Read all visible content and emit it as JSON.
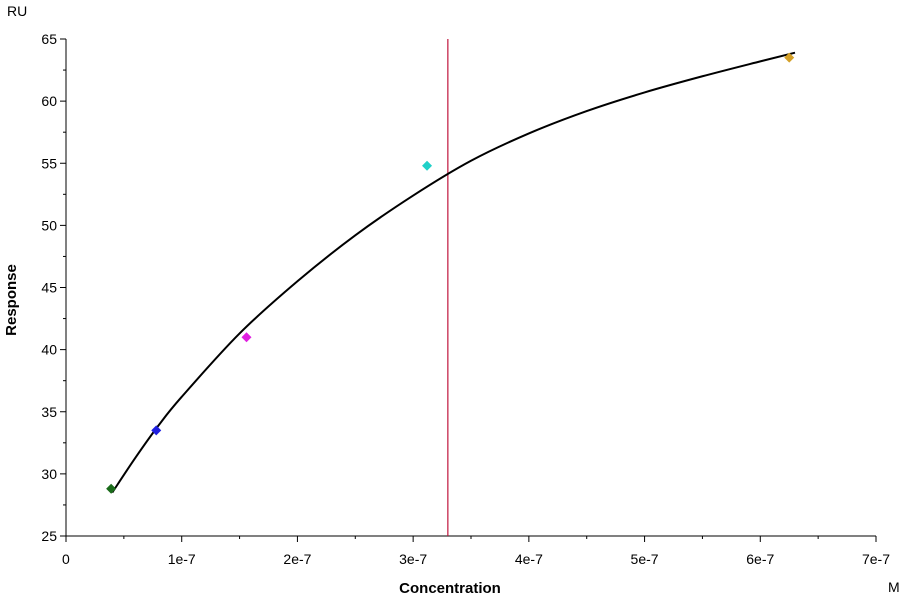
{
  "chart_data": {
    "type": "scatter",
    "title": "",
    "xlabel": "Concentration",
    "ylabel": "Response",
    "x_unit": "M",
    "y_unit": "RU",
    "xlim": [
      0,
      7e-07
    ],
    "ylim": [
      25,
      65
    ],
    "x_ticks": [
      0,
      1e-07,
      2e-07,
      3e-07,
      4e-07,
      5e-07,
      6e-07,
      7e-07
    ],
    "x_tick_labels": [
      "0",
      "1e-7",
      "2e-7",
      "3e-7",
      "4e-7",
      "5e-7",
      "6e-7",
      "7e-7"
    ],
    "y_ticks": [
      25,
      30,
      35,
      40,
      45,
      50,
      55,
      60,
      65
    ],
    "y_tick_labels": [
      "25",
      "30",
      "35",
      "40",
      "45",
      "50",
      "55",
      "60",
      "65"
    ],
    "grid": false,
    "legend": "none",
    "points": [
      {
        "x": 3.9e-08,
        "y": 28.8,
        "color": "#1a6b1a"
      },
      {
        "x": 7.8e-08,
        "y": 33.5,
        "color": "#1f1fe0"
      },
      {
        "x": 1.56e-07,
        "y": 41.0,
        "color": "#e020e0"
      },
      {
        "x": 3.12e-07,
        "y": 54.8,
        "color": "#20d0c8"
      },
      {
        "x": 6.25e-07,
        "y": 63.5,
        "color": "#d4a028"
      }
    ],
    "fit_curve": {
      "color": "#000000",
      "points": [
        [
          4e-08,
          28.5
        ],
        [
          6e-08,
          31.3
        ],
        [
          8e-08,
          33.9
        ],
        [
          1e-07,
          36.2
        ],
        [
          1.5e-07,
          41.3
        ],
        [
          2e-07,
          45.5
        ],
        [
          2.5e-07,
          49.2
        ],
        [
          3e-07,
          52.4
        ],
        [
          3.5e-07,
          55.2
        ],
        [
          4e-07,
          57.4
        ],
        [
          4.5e-07,
          59.2
        ],
        [
          5e-07,
          60.7
        ],
        [
          5.5e-07,
          62.0
        ],
        [
          6e-07,
          63.2
        ],
        [
          6.3e-07,
          63.9
        ]
      ]
    },
    "reference_line": {
      "x": 3.3e-07,
      "color": "#c0143c"
    }
  }
}
